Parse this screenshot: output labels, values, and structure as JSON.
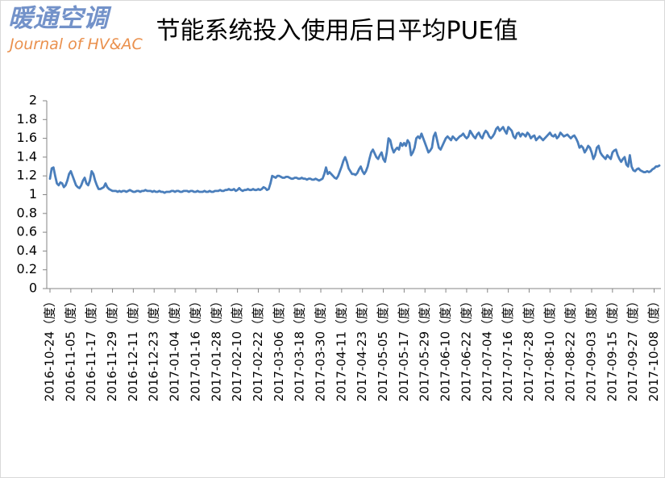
{
  "logo": {
    "title": "暖通空调",
    "subtitle": "Journal of HV&AC"
  },
  "chart_data": {
    "type": "line",
    "title": "节能系统投入使用后日平均PUE值",
    "color": "#4a7ebb",
    "grid": false,
    "ylim": [
      0,
      2
    ],
    "yticks": [
      0,
      0.2,
      0.4,
      0.6,
      0.8,
      1,
      1.2,
      1.4,
      1.6,
      1.8,
      2
    ],
    "categories": [
      "2016-10-24（度）",
      null,
      null,
      null,
      null,
      null,
      null,
      null,
      null,
      null,
      null,
      null,
      "2016-11-05（度）",
      null,
      null,
      null,
      null,
      null,
      null,
      null,
      null,
      null,
      null,
      null,
      "2016-11-17（度）",
      null,
      null,
      null,
      null,
      null,
      null,
      null,
      null,
      null,
      null,
      null,
      "2016-11-29（度）",
      null,
      null,
      null,
      null,
      null,
      null,
      null,
      null,
      null,
      null,
      null,
      "2016-12-11（度）",
      null,
      null,
      null,
      null,
      null,
      null,
      null,
      null,
      null,
      null,
      null,
      "2016-12-23（度）",
      null,
      null,
      null,
      null,
      null,
      null,
      null,
      null,
      null,
      null,
      null,
      "2017-01-04（度）",
      null,
      null,
      null,
      null,
      null,
      null,
      null,
      null,
      null,
      null,
      null,
      "2017-01-16（度）",
      null,
      null,
      null,
      null,
      null,
      null,
      null,
      null,
      null,
      null,
      null,
      "2017-01-28（度）",
      null,
      null,
      null,
      null,
      null,
      null,
      null,
      null,
      null,
      null,
      null,
      "2017-02-10（度）",
      null,
      null,
      null,
      null,
      null,
      null,
      null,
      null,
      null,
      null,
      null,
      "2017-02-22（度）",
      null,
      null,
      null,
      null,
      null,
      null,
      null,
      null,
      null,
      null,
      null,
      "2017-03-06（度）",
      null,
      null,
      null,
      null,
      null,
      null,
      null,
      null,
      null,
      null,
      null,
      "2017-03-18（度）",
      null,
      null,
      null,
      null,
      null,
      null,
      null,
      null,
      null,
      null,
      null,
      "2017-03-30（度）",
      null,
      null,
      null,
      null,
      null,
      null,
      null,
      null,
      null,
      null,
      null,
      "2017-04-11（度）",
      null,
      null,
      null,
      null,
      null,
      null,
      null,
      null,
      null,
      null,
      null,
      "2017-04-23（度）",
      null,
      null,
      null,
      null,
      null,
      null,
      null,
      null,
      null,
      null,
      null,
      "2017-05-05（度）",
      null,
      null,
      null,
      null,
      null,
      null,
      null,
      null,
      null,
      null,
      null,
      "2017-05-17（度）",
      null,
      null,
      null,
      null,
      null,
      null,
      null,
      null,
      null,
      null,
      null,
      "2017-05-29（度）",
      null,
      null,
      null,
      null,
      null,
      null,
      null,
      null,
      null,
      null,
      null,
      "2017-06-10（度）",
      null,
      null,
      null,
      null,
      null,
      null,
      null,
      null,
      null,
      null,
      null,
      "2017-06-22（度）",
      null,
      null,
      null,
      null,
      null,
      null,
      null,
      null,
      null,
      null,
      null,
      "2017-07-04（度）",
      null,
      null,
      null,
      null,
      null,
      null,
      null,
      null,
      null,
      null,
      null,
      "2017-07-16（度）",
      null,
      null,
      null,
      null,
      null,
      null,
      null,
      null,
      null,
      null,
      null,
      "2017-07-28（度）",
      null,
      null,
      null,
      null,
      null,
      null,
      null,
      null,
      null,
      null,
      null,
      "2017-08-10（度）",
      null,
      null,
      null,
      null,
      null,
      null,
      null,
      null,
      null,
      null,
      null,
      "2017-08-22（度）",
      null,
      null,
      null,
      null,
      null,
      null,
      null,
      null,
      null,
      null,
      null,
      "2017-09-03（度）",
      null,
      null,
      null,
      null,
      null,
      null,
      null,
      null,
      null,
      null,
      null,
      "2017-09-15（度）",
      null,
      null,
      null,
      null,
      null,
      null,
      null,
      null,
      null,
      null,
      null,
      "2017-09-27（度）",
      null,
      null,
      null,
      null,
      null,
      null,
      null,
      null,
      null,
      null,
      null,
      "2017-10-08（度）",
      null,
      null,
      null
    ],
    "values": [
      1.17,
      1.28,
      1.29,
      1.2,
      1.12,
      1.1,
      1.13,
      1.12,
      1.08,
      1.1,
      1.15,
      1.22,
      1.25,
      1.2,
      1.15,
      1.1,
      1.08,
      1.07,
      1.1,
      1.15,
      1.18,
      1.12,
      1.1,
      1.15,
      1.25,
      1.22,
      1.15,
      1.1,
      1.06,
      1.06,
      1.07,
      1.08,
      1.12,
      1.08,
      1.06,
      1.05,
      1.04,
      1.04,
      1.04,
      1.03,
      1.04,
      1.03,
      1.04,
      1.04,
      1.03,
      1.04,
      1.05,
      1.04,
      1.03,
      1.03,
      1.04,
      1.04,
      1.03,
      1.04,
      1.04,
      1.05,
      1.04,
      1.04,
      1.04,
      1.03,
      1.04,
      1.03,
      1.03,
      1.04,
      1.03,
      1.03,
      1.02,
      1.03,
      1.03,
      1.03,
      1.04,
      1.04,
      1.03,
      1.04,
      1.04,
      1.03,
      1.03,
      1.04,
      1.04,
      1.04,
      1.03,
      1.04,
      1.04,
      1.03,
      1.03,
      1.04,
      1.03,
      1.03,
      1.03,
      1.04,
      1.03,
      1.03,
      1.04,
      1.03,
      1.03,
      1.04,
      1.04,
      1.04,
      1.05,
      1.04,
      1.04,
      1.05,
      1.05,
      1.06,
      1.05,
      1.05,
      1.06,
      1.04,
      1.05,
      1.07,
      1.05,
      1.04,
      1.05,
      1.05,
      1.06,
      1.05,
      1.05,
      1.06,
      1.05,
      1.05,
      1.06,
      1.05,
      1.06,
      1.08,
      1.07,
      1.05,
      1.06,
      1.12,
      1.2,
      1.19,
      1.18,
      1.2,
      1.2,
      1.19,
      1.18,
      1.18,
      1.19,
      1.19,
      1.18,
      1.17,
      1.17,
      1.18,
      1.18,
      1.17,
      1.17,
      1.18,
      1.17,
      1.17,
      1.16,
      1.17,
      1.17,
      1.16,
      1.16,
      1.17,
      1.16,
      1.15,
      1.16,
      1.17,
      1.22,
      1.29,
      1.22,
      1.24,
      1.22,
      1.2,
      1.18,
      1.17,
      1.2,
      1.25,
      1.3,
      1.36,
      1.4,
      1.35,
      1.28,
      1.25,
      1.22,
      1.22,
      1.21,
      1.23,
      1.27,
      1.3,
      1.25,
      1.22,
      1.25,
      1.3,
      1.38,
      1.45,
      1.48,
      1.44,
      1.4,
      1.38,
      1.42,
      1.45,
      1.38,
      1.35,
      1.45,
      1.6,
      1.58,
      1.5,
      1.45,
      1.48,
      1.5,
      1.48,
      1.55,
      1.52,
      1.55,
      1.52,
      1.58,
      1.55,
      1.42,
      1.45,
      1.5,
      1.6,
      1.62,
      1.6,
      1.65,
      1.6,
      1.55,
      1.5,
      1.45,
      1.47,
      1.5,
      1.62,
      1.66,
      1.58,
      1.5,
      1.48,
      1.52,
      1.56,
      1.6,
      1.62,
      1.6,
      1.58,
      1.62,
      1.6,
      1.58,
      1.6,
      1.62,
      1.63,
      1.65,
      1.62,
      1.6,
      1.62,
      1.68,
      1.65,
      1.62,
      1.6,
      1.64,
      1.66,
      1.62,
      1.6,
      1.65,
      1.68,
      1.66,
      1.62,
      1.6,
      1.62,
      1.65,
      1.7,
      1.72,
      1.68,
      1.7,
      1.72,
      1.68,
      1.65,
      1.72,
      1.7,
      1.68,
      1.62,
      1.6,
      1.65,
      1.66,
      1.62,
      1.65,
      1.64,
      1.62,
      1.66,
      1.64,
      1.6,
      1.62,
      1.63,
      1.58,
      1.6,
      1.62,
      1.6,
      1.58,
      1.6,
      1.62,
      1.64,
      1.66,
      1.63,
      1.62,
      1.64,
      1.6,
      1.62,
      1.66,
      1.64,
      1.62,
      1.63,
      1.64,
      1.62,
      1.6,
      1.62,
      1.63,
      1.6,
      1.56,
      1.5,
      1.52,
      1.5,
      1.45,
      1.48,
      1.52,
      1.5,
      1.45,
      1.38,
      1.42,
      1.5,
      1.52,
      1.45,
      1.42,
      1.4,
      1.38,
      1.42,
      1.4,
      1.38,
      1.45,
      1.47,
      1.48,
      1.42,
      1.38,
      1.35,
      1.38,
      1.4,
      1.32,
      1.3,
      1.42,
      1.3,
      1.26,
      1.25,
      1.27,
      1.28,
      1.26,
      1.25,
      1.24,
      1.24,
      1.25,
      1.24,
      1.25,
      1.27,
      1.28,
      1.3,
      1.3,
      1.31
    ]
  }
}
